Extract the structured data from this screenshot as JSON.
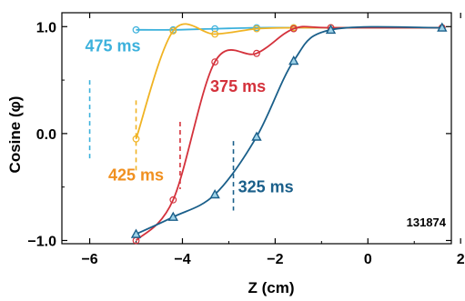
{
  "chart_data": {
    "type": "line",
    "title": "",
    "xlabel": "Z (cm)",
    "ylabel": "Cosine (φ)",
    "xlim": [
      -6.6,
      1.8
    ],
    "ylim": [
      -1.03,
      1.13
    ],
    "xticks": [
      -6,
      -4,
      -2,
      0,
      2
    ],
    "xtick_labels": [
      "−6",
      "−4",
      "−2",
      "0",
      "2"
    ],
    "yticks": [
      -1.0,
      0.0,
      1.0
    ],
    "ytick_labels": [
      "−1.0",
      "0.0",
      "1.0"
    ],
    "grid": false,
    "legend": "none",
    "annotation": "131874",
    "series": [
      {
        "name": "325 ms",
        "color": "#1a5f8a",
        "marker": "triangle",
        "x": [
          -5.0,
          -4.2,
          -3.3,
          -2.4,
          -1.6,
          -0.8,
          1.6
        ],
        "y": [
          -0.94,
          -0.78,
          -0.57,
          -0.03,
          0.68,
          0.97,
          0.99
        ],
        "marker_line_x": -2.9,
        "label_pos": [
          -2.8,
          -0.55
        ]
      },
      {
        "name": "375 ms",
        "color": "#d4323c",
        "marker": "circle",
        "x": [
          -5.0,
          -4.2,
          -3.3,
          -2.4,
          -1.6,
          -0.8,
          1.6
        ],
        "y": [
          -1.0,
          -0.62,
          0.67,
          0.75,
          0.98,
          0.99,
          0.99
        ],
        "marker_line_x": -4.05,
        "label_pos": [
          -3.4,
          0.39
        ]
      },
      {
        "name": "425 ms",
        "color": "#f0b323",
        "marker": "circle",
        "x": [
          -5.0,
          -4.2,
          -3.3,
          -2.4,
          -1.6,
          -0.8,
          1.6
        ],
        "y": [
          -0.05,
          0.96,
          0.93,
          0.98,
          0.99,
          0.99,
          0.99
        ],
        "marker_line_x": -5.0,
        "label_pos": [
          -5.6,
          -0.44
        ]
      },
      {
        "name": "475 ms",
        "color": "#3cb1dc",
        "marker": "circle",
        "x": [
          -5.0,
          -4.2,
          -3.3,
          -2.4,
          -1.6,
          -0.8,
          1.6
        ],
        "y": [
          0.97,
          0.97,
          0.98,
          0.99,
          0.99,
          0.99,
          0.99
        ],
        "marker_line_x": -6.0,
        "label_pos": [
          -6.1,
          0.77
        ]
      }
    ],
    "label_colors": {
      "325 ms": "#1a5f8a",
      "375 ms": "#d4323c",
      "425 ms": "#f09020",
      "475 ms": "#3cb1dc"
    }
  }
}
